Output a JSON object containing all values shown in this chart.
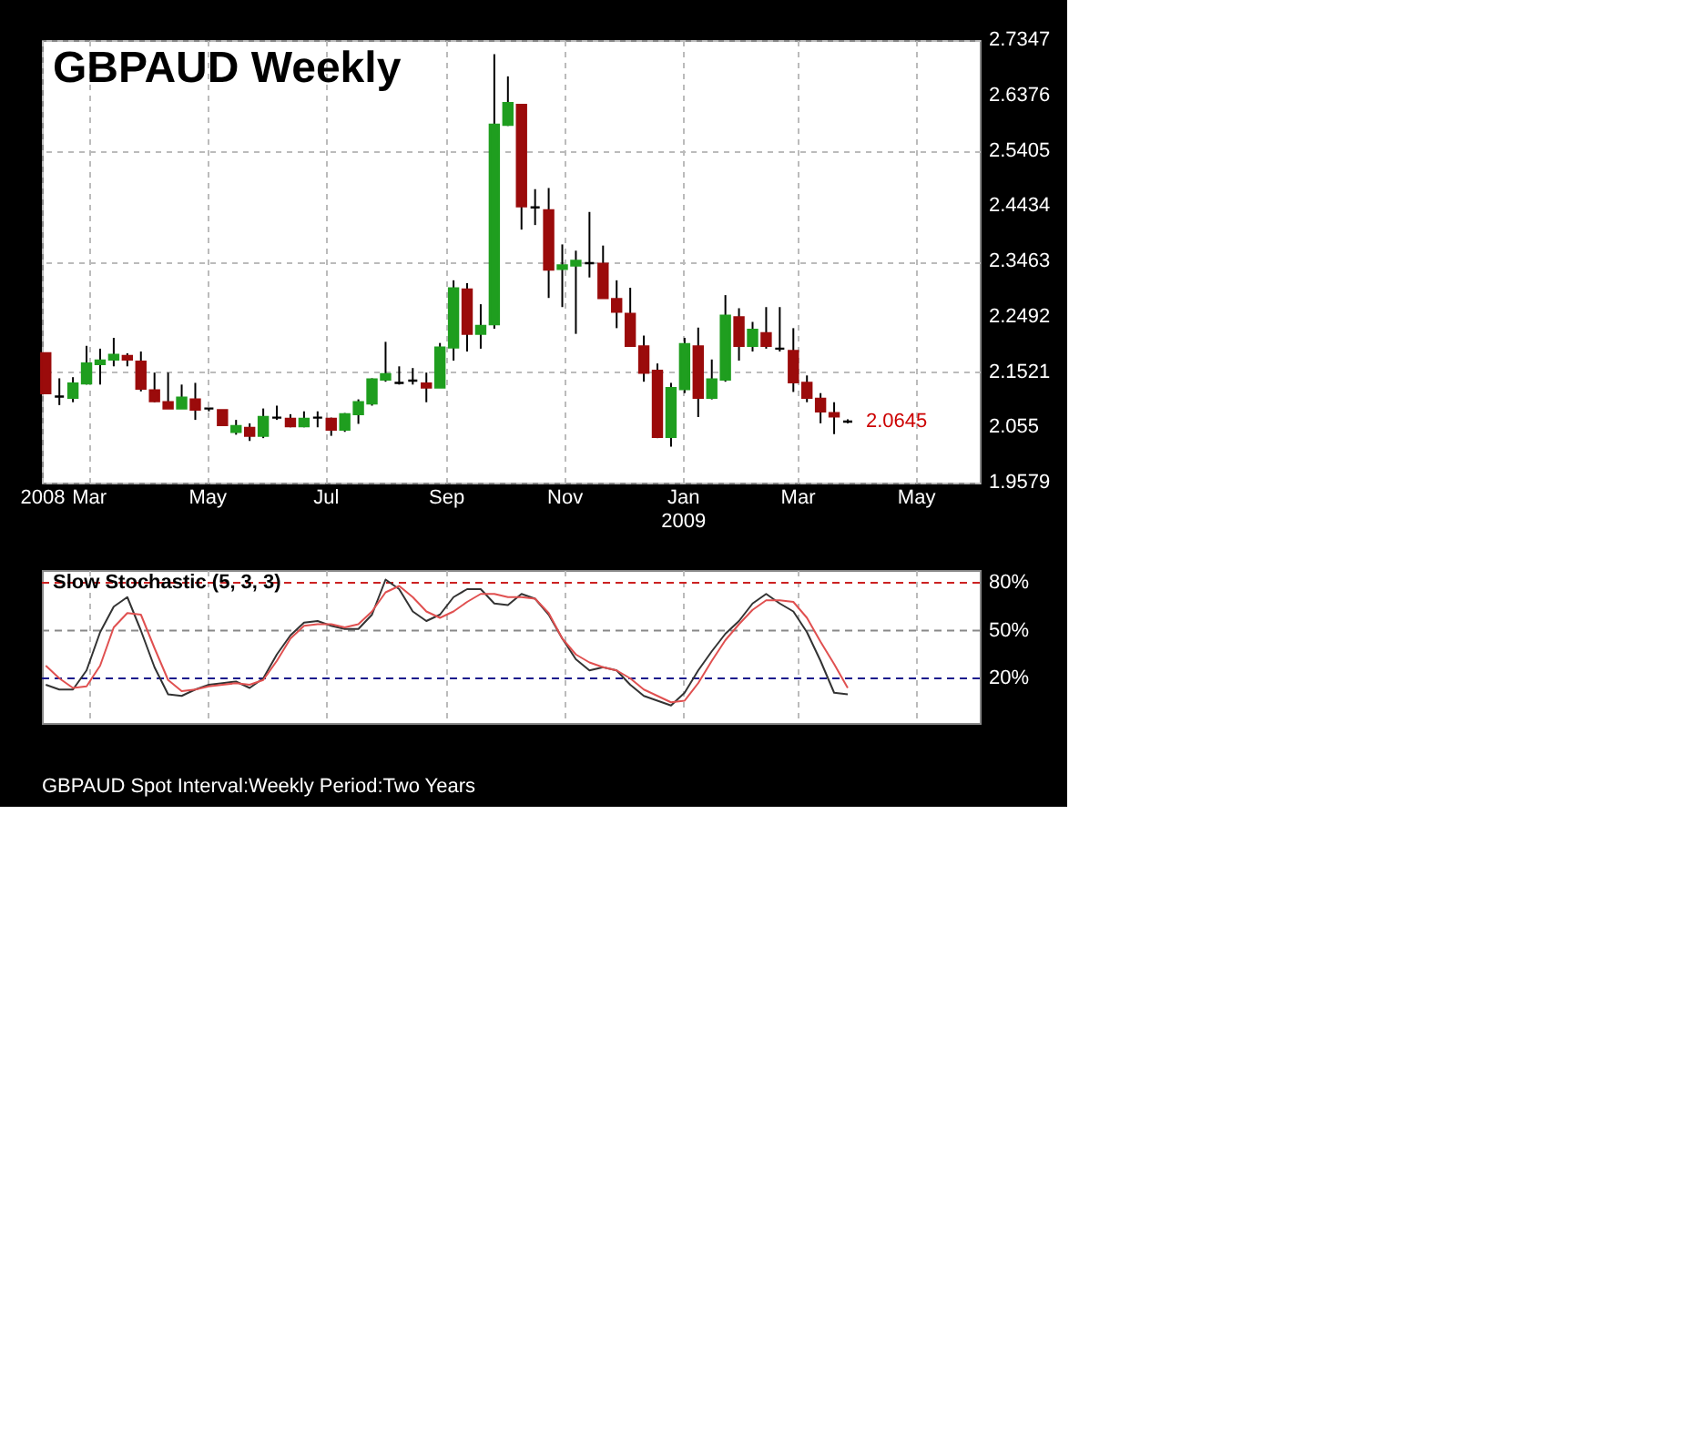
{
  "chart_data": [
    {
      "type": "candlestick",
      "title": "GBPAUD Weekly",
      "x": [
        "2008-02-08",
        "2008-02-15",
        "2008-02-22",
        "2008-02-29",
        "2008-03-07",
        "2008-03-14",
        "2008-03-21",
        "2008-03-28",
        "2008-04-04",
        "2008-04-11",
        "2008-04-18",
        "2008-04-25",
        "2008-05-02",
        "2008-05-09",
        "2008-05-16",
        "2008-05-23",
        "2008-05-30",
        "2008-06-06",
        "2008-06-13",
        "2008-06-20",
        "2008-06-27",
        "2008-07-04",
        "2008-07-11",
        "2008-07-18",
        "2008-07-25",
        "2008-08-01",
        "2008-08-08",
        "2008-08-15",
        "2008-08-22",
        "2008-08-29",
        "2008-09-05",
        "2008-09-12",
        "2008-09-19",
        "2008-09-26",
        "2008-10-03",
        "2008-10-10",
        "2008-10-17",
        "2008-10-24",
        "2008-10-31",
        "2008-11-07",
        "2008-11-14",
        "2008-11-21",
        "2008-11-28",
        "2008-12-05",
        "2008-12-12",
        "2008-12-19",
        "2008-12-26",
        "2009-01-02",
        "2009-01-09",
        "2009-01-16",
        "2009-01-23",
        "2009-01-30",
        "2009-02-06",
        "2009-02-13",
        "2009-02-20",
        "2009-02-27",
        "2009-03-06",
        "2009-03-13",
        "2009-03-20",
        "2009-03-27"
      ],
      "ohlc": [
        [
          2.185,
          2.185,
          2.115,
          2.115
        ],
        [
          2.109,
          2.141,
          2.094,
          2.109
        ],
        [
          2.107,
          2.143,
          2.099,
          2.132
        ],
        [
          2.132,
          2.198,
          2.13,
          2.167
        ],
        [
          2.166,
          2.193,
          2.13,
          2.172
        ],
        [
          2.174,
          2.212,
          2.162,
          2.182
        ],
        [
          2.18,
          2.185,
          2.162,
          2.174
        ],
        [
          2.17,
          2.188,
          2.118,
          2.123
        ],
        [
          2.12,
          2.151,
          2.099,
          2.101
        ],
        [
          2.099,
          2.151,
          2.088,
          2.088
        ],
        [
          2.088,
          2.13,
          2.088,
          2.107
        ],
        [
          2.104,
          2.133,
          2.068,
          2.086
        ],
        [
          2.088,
          2.088,
          2.083,
          2.088
        ],
        [
          2.085,
          2.085,
          2.057,
          2.059
        ],
        [
          2.047,
          2.068,
          2.042,
          2.057
        ],
        [
          2.054,
          2.062,
          2.031,
          2.04
        ],
        [
          2.04,
          2.088,
          2.036,
          2.073
        ],
        [
          2.072,
          2.093,
          2.068,
          2.072
        ],
        [
          2.07,
          2.078,
          2.055,
          2.057
        ],
        [
          2.057,
          2.083,
          2.055,
          2.07
        ],
        [
          2.072,
          2.083,
          2.055,
          2.072
        ],
        [
          2.07,
          2.072,
          2.04,
          2.051
        ],
        [
          2.051,
          2.08,
          2.047,
          2.078
        ],
        [
          2.078,
          2.104,
          2.061,
          2.099
        ],
        [
          2.097,
          2.141,
          2.093,
          2.139
        ],
        [
          2.139,
          2.205,
          2.135,
          2.148
        ],
        [
          2.133,
          2.162,
          2.13,
          2.133
        ],
        [
          2.137,
          2.159,
          2.13,
          2.137
        ],
        [
          2.132,
          2.151,
          2.099,
          2.125
        ],
        [
          2.125,
          2.203,
          2.125,
          2.195
        ],
        [
          2.195,
          2.313,
          2.172,
          2.299
        ],
        [
          2.297,
          2.308,
          2.188,
          2.219
        ],
        [
          2.219,
          2.271,
          2.193,
          2.233
        ],
        [
          2.236,
          2.71,
          2.228,
          2.586
        ],
        [
          2.586,
          2.671,
          2.584,
          2.624
        ],
        [
          2.621,
          2.621,
          2.402,
          2.443
        ],
        [
          2.441,
          2.473,
          2.41,
          2.441
        ],
        [
          2.436,
          2.475,
          2.282,
          2.332
        ],
        [
          2.333,
          2.376,
          2.266,
          2.339
        ],
        [
          2.339,
          2.365,
          2.219,
          2.347
        ],
        [
          2.343,
          2.433,
          2.318,
          2.343
        ],
        [
          2.342,
          2.374,
          2.282,
          2.282
        ],
        [
          2.28,
          2.313,
          2.229,
          2.258
        ],
        [
          2.254,
          2.3,
          2.198,
          2.198
        ],
        [
          2.197,
          2.216,
          2.135,
          2.151
        ],
        [
          2.154,
          2.167,
          2.036,
          2.038
        ],
        [
          2.038,
          2.133,
          2.021,
          2.124
        ],
        [
          2.122,
          2.212,
          2.115,
          2.201
        ],
        [
          2.197,
          2.23,
          2.073,
          2.107
        ],
        [
          2.107,
          2.174,
          2.104,
          2.139
        ],
        [
          2.139,
          2.287,
          2.135,
          2.251
        ],
        [
          2.248,
          2.264,
          2.172,
          2.198
        ],
        [
          2.198,
          2.24,
          2.188,
          2.226
        ],
        [
          2.22,
          2.266,
          2.193,
          2.198
        ],
        [
          2.193,
          2.266,
          2.188,
          2.193
        ],
        [
          2.189,
          2.229,
          2.117,
          2.134
        ],
        [
          2.133,
          2.146,
          2.099,
          2.107
        ],
        [
          2.105,
          2.115,
          2.062,
          2.083
        ],
        [
          2.08,
          2.099,
          2.043,
          2.074
        ],
        [
          2.065,
          2.069,
          2.062,
          2.065
        ]
      ],
      "colors": [
        "#9b0b0b",
        "#000000",
        "#1f9e1f",
        "#1f9e1f",
        "#1f9e1f",
        "#1f9e1f",
        "#9b0b0b",
        "#9b0b0b",
        "#9b0b0b",
        "#9b0b0b",
        "#1f9e1f",
        "#9b0b0b",
        "#000000",
        "#9b0b0b",
        "#1f9e1f",
        "#9b0b0b",
        "#1f9e1f",
        "#000000",
        "#9b0b0b",
        "#1f9e1f",
        "#000000",
        "#9b0b0b",
        "#1f9e1f",
        "#1f9e1f",
        "#1f9e1f",
        "#1f9e1f",
        "#000000",
        "#000000",
        "#9b0b0b",
        "#1f9e1f",
        "#1f9e1f",
        "#9b0b0b",
        "#1f9e1f",
        "#1f9e1f",
        "#1f9e1f",
        "#9b0b0b",
        "#000000",
        "#9b0b0b",
        "#1f9e1f",
        "#1f9e1f",
        "#000000",
        "#9b0b0b",
        "#9b0b0b",
        "#9b0b0b",
        "#9b0b0b",
        "#9b0b0b",
        "#1f9e1f",
        "#1f9e1f",
        "#9b0b0b",
        "#1f9e1f",
        "#1f9e1f",
        "#9b0b0b",
        "#1f9e1f",
        "#9b0b0b",
        "#000000",
        "#9b0b0b",
        "#9b0b0b",
        "#9b0b0b",
        "#9b0b0b",
        "#000000"
      ],
      "xlim": [
        "2008-02-06",
        "2009-06-03"
      ],
      "xticks": [
        {
          "value": "2008-02-06",
          "label": "2008"
        },
        {
          "value": "2008-03-01",
          "label": "Mar"
        },
        {
          "value": "2008-05-01",
          "label": "May"
        },
        {
          "value": "2008-07-01",
          "label": "Jul"
        },
        {
          "value": "2008-09-01",
          "label": "Sep"
        },
        {
          "value": "2008-11-01",
          "label": "Nov"
        },
        {
          "value": "2009-01-01",
          "label": "Jan\n2009"
        },
        {
          "value": "2009-03-01",
          "label": "Mar"
        },
        {
          "value": "2009-05-01",
          "label": "May"
        }
      ],
      "ylim": [
        1.9579,
        2.7347
      ],
      "yticks": [
        1.9579,
        2.055,
        2.1521,
        2.2492,
        2.3463,
        2.4434,
        2.5405,
        2.6376,
        2.7347
      ],
      "grid": true,
      "annotations": [
        {
          "text": "2.0645",
          "x": "2009-03-27",
          "y": 2.0645
        }
      ]
    },
    {
      "type": "line",
      "title": "Slow Stochastic (5, 3, 3)",
      "x": [
        "2008-02-08",
        "2008-02-15",
        "2008-02-22",
        "2008-02-29",
        "2008-03-07",
        "2008-03-14",
        "2008-03-21",
        "2008-03-28",
        "2008-04-04",
        "2008-04-11",
        "2008-04-18",
        "2008-04-25",
        "2008-05-02",
        "2008-05-09",
        "2008-05-16",
        "2008-05-23",
        "2008-05-30",
        "2008-06-06",
        "2008-06-13",
        "2008-06-20",
        "2008-06-27",
        "2008-07-04",
        "2008-07-11",
        "2008-07-18",
        "2008-07-25",
        "2008-08-01",
        "2008-08-08",
        "2008-08-15",
        "2008-08-22",
        "2008-08-29",
        "2008-09-05",
        "2008-09-12",
        "2008-09-19",
        "2008-09-26",
        "2008-10-03",
        "2008-10-10",
        "2008-10-17",
        "2008-10-24",
        "2008-10-31",
        "2008-11-07",
        "2008-11-14",
        "2008-11-21",
        "2008-11-28",
        "2008-12-05",
        "2008-12-12",
        "2008-12-19",
        "2008-12-26",
        "2009-01-02",
        "2009-01-09",
        "2009-01-16",
        "2009-01-23",
        "2009-01-30",
        "2009-02-06",
        "2009-02-13",
        "2009-02-20",
        "2009-02-27",
        "2009-03-06",
        "2009-03-13",
        "2009-03-20",
        "2009-03-27"
      ],
      "series": [
        {
          "color": "#333333",
          "values": [
            16,
            13,
            13,
            25,
            49,
            65,
            71,
            50,
            27,
            10,
            9,
            13,
            16,
            17,
            18,
            14,
            20,
            35,
            47,
            55,
            56,
            53,
            51,
            51,
            60,
            82,
            76,
            62,
            56,
            60,
            71,
            76,
            76,
            67,
            66,
            73,
            70,
            60,
            45,
            32,
            25,
            27,
            25,
            16,
            9,
            6,
            3,
            11,
            25,
            37,
            48,
            56,
            67,
            73,
            67,
            62,
            49,
            31,
            11,
            10
          ]
        },
        {
          "color": "#e05050",
          "values": [
            28,
            20,
            14,
            15,
            28,
            52,
            61,
            60,
            39,
            19,
            12,
            13,
            15,
            16,
            17,
            16,
            19,
            31,
            45,
            53,
            54,
            54,
            52,
            54,
            62,
            74,
            78,
            71,
            62,
            58,
            62,
            68,
            73,
            73,
            71,
            71,
            70,
            61,
            45,
            35,
            30,
            27,
            25,
            20,
            13,
            9,
            5,
            6,
            17,
            31,
            44,
            54,
            63,
            69,
            69,
            68,
            58,
            43,
            29,
            14
          ]
        }
      ],
      "xlim": [
        "2008-02-06",
        "2009-06-03"
      ],
      "xticks": [
        {
          "value": "2008-03-01",
          "label": null
        },
        {
          "value": "2008-05-01",
          "label": null
        },
        {
          "value": "2008-07-01",
          "label": null
        },
        {
          "value": "2008-09-01",
          "label": null
        },
        {
          "value": "2008-11-01",
          "label": null
        },
        {
          "value": "2009-01-01",
          "label": null
        },
        {
          "value": "2009-03-01",
          "label": null
        },
        {
          "value": "2009-05-01",
          "label": null
        }
      ],
      "ylim": [
        -8,
        88
      ],
      "yticks": [
        {
          "value": 20,
          "label": "20%"
        },
        {
          "value": 50,
          "label": "50%"
        },
        {
          "value": 80,
          "label": "80%"
        }
      ],
      "tick_labels": "y",
      "grid": "x",
      "line_style": "solid",
      "ref_lines": [
        {
          "axis": "y",
          "value": 80,
          "label": null,
          "color": "#cc2222",
          "line_style": "dashed"
        },
        {
          "axis": "y",
          "value": 50,
          "label": null,
          "color": "#888888",
          "line_style": "dashed"
        },
        {
          "axis": "y",
          "value": 20,
          "label": null,
          "color": "#1a1a8c",
          "line_style": "dashed"
        }
      ],
      "annotations": [
        "GBPAUD Spot    Interval:Weekly    Period:Two Years"
      ]
    }
  ]
}
